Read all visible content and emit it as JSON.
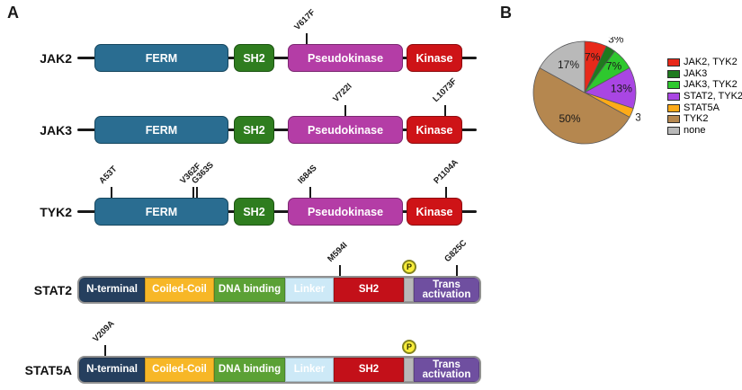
{
  "panel_a": {
    "label": "A",
    "proteins": [
      {
        "name": "JAK2",
        "domains": [
          "FERM",
          "SH2",
          "Pseudokinase",
          "Kinase"
        ],
        "mutations": [
          {
            "label": "V617F",
            "domain": "Pseudokinase"
          }
        ]
      },
      {
        "name": "JAK3",
        "domains": [
          "FERM",
          "SH2",
          "Pseudokinase",
          "Kinase"
        ],
        "mutations": [
          {
            "label": "V722I",
            "domain": "Pseudokinase"
          },
          {
            "label": "L1073F",
            "domain": "Kinase"
          }
        ]
      },
      {
        "name": "TYK2",
        "domains": [
          "FERM",
          "SH2",
          "Pseudokinase",
          "Kinase"
        ],
        "mutations": [
          {
            "label": "A53T",
            "domain": "FERM"
          },
          {
            "label": "V362F",
            "domain": "FERM"
          },
          {
            "label": "G363S",
            "domain": "FERM"
          },
          {
            "label": "I684S",
            "domain": "Pseudokinase"
          },
          {
            "label": "P1104A",
            "domain": "Kinase"
          }
        ]
      },
      {
        "name": "STAT2",
        "segments": [
          "N-terminal",
          "Coiled-Coil",
          "DNA binding",
          "Linker",
          "SH2",
          "Trans activation"
        ],
        "phospho": "P",
        "mutations": [
          {
            "label": "M594I",
            "domain": "SH2"
          },
          {
            "label": "G825C",
            "domain": "Trans activation"
          }
        ]
      },
      {
        "name": "STAT5A",
        "segments": [
          "N-terminal",
          "Coiled-Coil",
          "DNA binding",
          "Linker",
          "SH2",
          "Trans activation"
        ],
        "phospho": "P",
        "mutations": [
          {
            "label": "V209A",
            "domain": "N-terminal"
          }
        ]
      }
    ],
    "domain_colors": {
      "ferm": "#2a6d91",
      "jak_sh2": "#2f7d1f",
      "pseudokinase": "#b43da6",
      "kinase": "#ce1317",
      "n_terminal": "#253f5e",
      "coiled_coil": "#f7b727",
      "dna_binding": "#5ba135",
      "linker": "#cde9f7",
      "stat_sh2": "#c31019",
      "trans_activation": "#6f4fa0",
      "phospho_badge": "#f9ee3a"
    }
  },
  "panel_b": {
    "label": "B"
  },
  "chart_data": {
    "type": "pie",
    "title": "",
    "direction": "clockwise",
    "start_angle_deg": 0,
    "legend_position": "right",
    "value_suffix": "%",
    "slices": [
      {
        "name": "JAK2, TYK2",
        "value": 7,
        "color": "#e8291a",
        "label_r": 0.7
      },
      {
        "name": "JAK3",
        "value": 3,
        "color": "#1e7a1e",
        "label_r": 1.2
      },
      {
        "name": "JAK3, TYK2",
        "value": 7,
        "color": "#2ec82e",
        "label_r": 0.76
      },
      {
        "name": "STAT2, TYK2",
        "value": 13,
        "color": "#a946e3",
        "label_r": 0.72
      },
      {
        "name": "STAT5A",
        "value": 3,
        "color": "#fdaa18",
        "label_r": 1.24
      },
      {
        "name": "TYK2",
        "value": 50,
        "color": "#b5874f",
        "label_r": 0.6
      },
      {
        "name": "none",
        "value": 17,
        "color": "#b9b9b9",
        "label_r": 0.62
      }
    ]
  }
}
